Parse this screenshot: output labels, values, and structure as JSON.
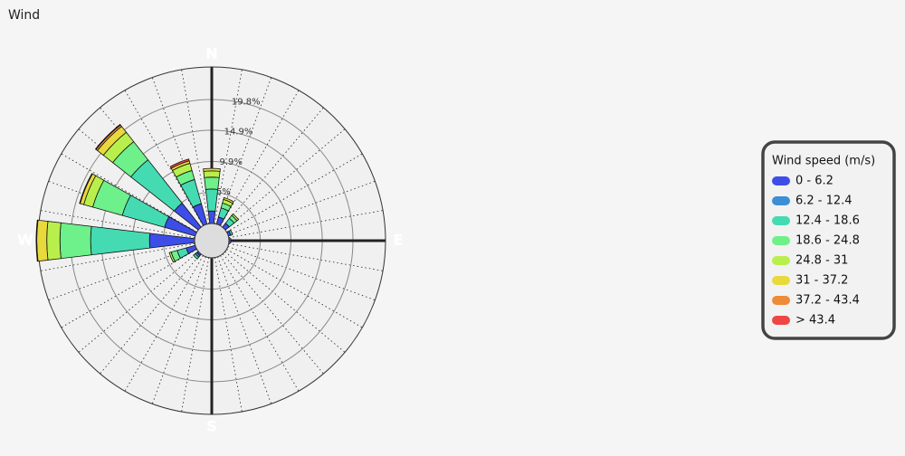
{
  "chart_data": {
    "type": "windrose",
    "title": "Wind",
    "categories": [
      "N",
      null,
      null,
      null,
      "E",
      null,
      null,
      null,
      "S",
      null,
      null,
      null,
      "W",
      null,
      null,
      null
    ],
    "ylim": [
      0,
      25
    ],
    "yticks": [
      {
        "value": 5,
        "label": "5%"
      },
      {
        "value": 9.9,
        "label": "9.9%"
      },
      {
        "value": 14.9,
        "label": "14.9%"
      },
      {
        "value": 19.8,
        "label": "19.8%"
      }
    ],
    "legend_title": "Wind speed (m/s)",
    "series": [
      {
        "name": "0 - 6.2",
        "color": "#3d4ee8",
        "values": [
          2.0,
          1.2,
          0.8,
          0.4,
          0.3,
          0,
          0,
          0,
          0,
          0,
          0.3,
          1.5,
          7.2,
          5.1,
          4.9,
          3.4
        ]
      },
      {
        "name": "6.2 - 12.4",
        "color": "#3b8fd6",
        "values": [
          0,
          0,
          0,
          0,
          0,
          0,
          0,
          0,
          0,
          0,
          0.3,
          0,
          0,
          0,
          0,
          0
        ]
      },
      {
        "name": "12.4 - 18.6",
        "color": "#44dbb2",
        "values": [
          3.5,
          1.5,
          1.0,
          0.3,
          0,
          0,
          0,
          0,
          0,
          0,
          0.4,
          1.5,
          9.4,
          7.0,
          8.8,
          4.0
        ]
      },
      {
        "name": "18.6 - 24.8",
        "color": "#6ef08a",
        "values": [
          1.9,
          0.8,
          0.6,
          0,
          0,
          0,
          0,
          0,
          0,
          0,
          0,
          1.0,
          4.9,
          4.9,
          3.7,
          1.5
        ]
      },
      {
        "name": "24.8 - 31",
        "color": "#b9ef4c",
        "values": [
          1.0,
          0.6,
          0.3,
          0,
          0,
          0,
          0,
          0,
          0,
          0,
          0,
          0.3,
          2.1,
          1.5,
          1.9,
          1.2
        ]
      },
      {
        "name": "31 - 37.2",
        "color": "#e8d93c",
        "values": [
          0.4,
          0.3,
          0,
          0,
          0,
          0,
          0,
          0,
          0,
          0,
          0,
          0,
          1.6,
          0.6,
          1.2,
          0.4
        ]
      },
      {
        "name": "37.2 - 43.4",
        "color": "#ef8a36",
        "values": [
          0,
          0,
          0,
          0,
          0,
          0,
          0,
          0,
          0,
          0,
          0,
          0,
          0,
          0,
          0.3,
          0
        ]
      },
      {
        "name": "> 43.4",
        "color": "#f04545",
        "values": [
          0,
          0,
          0,
          0,
          0,
          0,
          0,
          0,
          0,
          0,
          0,
          0,
          0.1,
          0.1,
          0.1,
          0.3
        ]
      }
    ]
  }
}
